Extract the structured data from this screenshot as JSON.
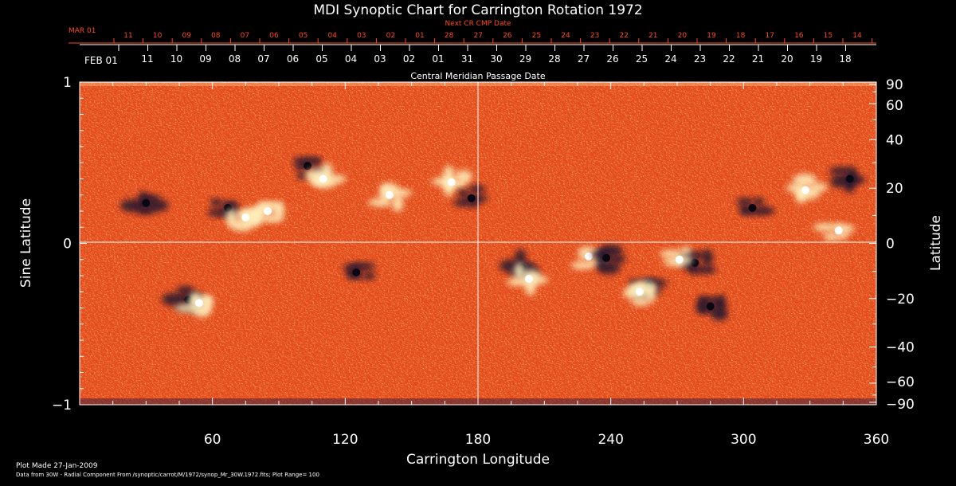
{
  "chart_data": {
    "type": "heatmap",
    "title": "MDI Synoptic Chart for Carrington Rotation 1972",
    "xlabel": "Carrington Longitude",
    "ylabel_left": "Sine Latitude",
    "ylabel_right": "Latitude",
    "xlim": [
      0,
      360
    ],
    "ylim": [
      -1,
      1
    ],
    "x_ticks": [
      60,
      120,
      180,
      240,
      300,
      360
    ],
    "y_ticks_left": [
      {
        "value": 1,
        "label": "1"
      },
      {
        "value": 0,
        "label": "0"
      },
      {
        "value": -1,
        "label": "−1"
      }
    ],
    "y_ticks_right": [
      90,
      60,
      40,
      20,
      0,
      -20,
      -40,
      -60,
      -90
    ],
    "top_axis_label": "Central Meridian Passage Date",
    "next_axis_label": "Next CR CMP Date",
    "cmp_start_label": "FEB 01",
    "cmp_dates": [
      "11",
      "10",
      "09",
      "08",
      "07",
      "06",
      "05",
      "04",
      "03",
      "02",
      "01",
      "31",
      "30",
      "29",
      "28",
      "27",
      "26",
      "25",
      "24",
      "23",
      "22",
      "21",
      "20",
      "19",
      "18"
    ],
    "next_start_label": "MAR 01",
    "next_dates": [
      "11",
      "10",
      "09",
      "08",
      "07",
      "06",
      "05",
      "04",
      "03",
      "02",
      "01",
      "28",
      "27",
      "26",
      "25",
      "24",
      "23",
      "22",
      "21",
      "20",
      "19",
      "18",
      "17",
      "16",
      "15",
      "14"
    ],
    "plot_range": 100,
    "colors": {
      "background": "#000000",
      "field": "#e4471a",
      "positive": "#fff3c0",
      "negative": "#20122e",
      "axes": "#ffffff",
      "next_axis": "#ff4a1a"
    },
    "active_regions": [
      {
        "lon": 67,
        "lat_sin": 0.22,
        "polarity": "negative"
      },
      {
        "lon": 75,
        "lat_sin": 0.16,
        "polarity": "positive"
      },
      {
        "lon": 85,
        "lat_sin": 0.2,
        "polarity": "positive"
      },
      {
        "lon": 103,
        "lat_sin": 0.48,
        "polarity": "negative"
      },
      {
        "lon": 110,
        "lat_sin": 0.4,
        "polarity": "positive"
      },
      {
        "lon": 168,
        "lat_sin": 0.38,
        "polarity": "positive"
      },
      {
        "lon": 177,
        "lat_sin": 0.28,
        "polarity": "negative"
      },
      {
        "lon": 49,
        "lat_sin": -0.35,
        "polarity": "negative"
      },
      {
        "lon": 54,
        "lat_sin": -0.37,
        "polarity": "positive"
      },
      {
        "lon": 230,
        "lat_sin": -0.08,
        "polarity": "positive"
      },
      {
        "lon": 238,
        "lat_sin": -0.09,
        "polarity": "negative"
      },
      {
        "lon": 278,
        "lat_sin": -0.12,
        "polarity": "negative"
      },
      {
        "lon": 271,
        "lat_sin": -0.1,
        "polarity": "positive"
      },
      {
        "lon": 200,
        "lat_sin": -0.15,
        "polarity": "negative"
      },
      {
        "lon": 203,
        "lat_sin": -0.22,
        "polarity": "positive"
      },
      {
        "lon": 257,
        "lat_sin": -0.26,
        "polarity": "negative"
      },
      {
        "lon": 253,
        "lat_sin": -0.3,
        "polarity": "positive"
      },
      {
        "lon": 285,
        "lat_sin": -0.39,
        "polarity": "negative"
      },
      {
        "lon": 304,
        "lat_sin": 0.22,
        "polarity": "negative"
      },
      {
        "lon": 328,
        "lat_sin": 0.33,
        "polarity": "positive"
      },
      {
        "lon": 348,
        "lat_sin": 0.4,
        "polarity": "negative"
      },
      {
        "lon": 343,
        "lat_sin": 0.08,
        "polarity": "positive"
      },
      {
        "lon": 30,
        "lat_sin": 0.25,
        "polarity": "negative"
      },
      {
        "lon": 140,
        "lat_sin": 0.3,
        "polarity": "positive"
      },
      {
        "lon": 125,
        "lat_sin": -0.18,
        "polarity": "negative"
      }
    ]
  },
  "footer": {
    "plot_made": "Plot Made 27-Jan-2009",
    "data_from": "Data from 30W - Radial Component From /synoptic/carrot/M/1972/synop_Mr_30W.1972.fits; Plot Range= 100"
  }
}
